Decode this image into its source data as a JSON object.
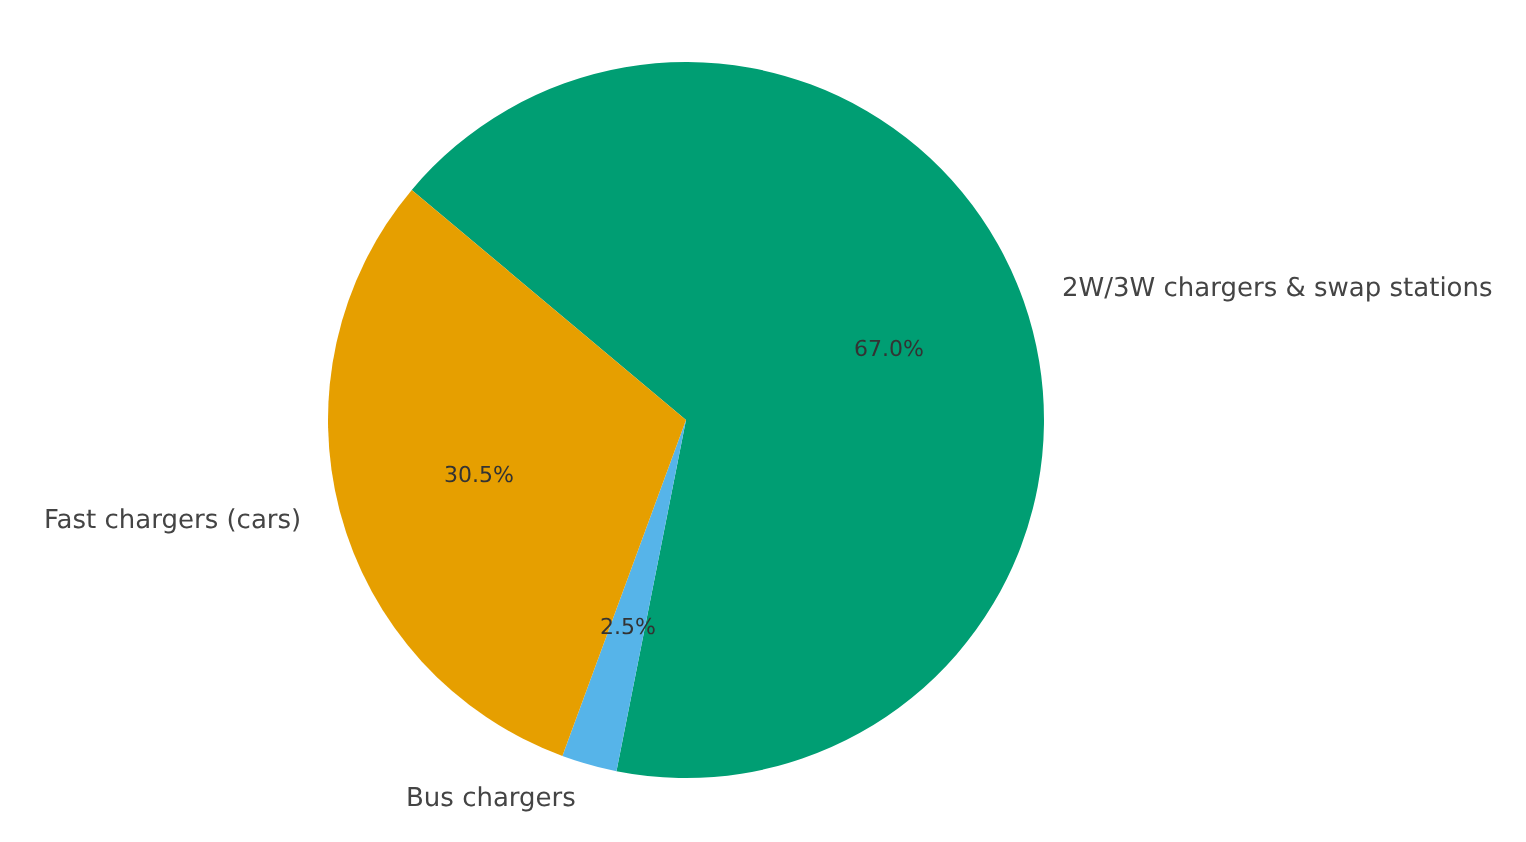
{
  "chart_data": {
    "type": "pie",
    "categories": [
      "2W/3W chargers & swap stations",
      "Bus chargers",
      "Fast chargers (cars)"
    ],
    "values": [
      67.0,
      2.5,
      30.5
    ],
    "colors": [
      "#009e73",
      "#56b4e9",
      "#e69f00"
    ],
    "value_labels": [
      "67.0%",
      "2.5%",
      "30.5%"
    ],
    "legend": false
  }
}
